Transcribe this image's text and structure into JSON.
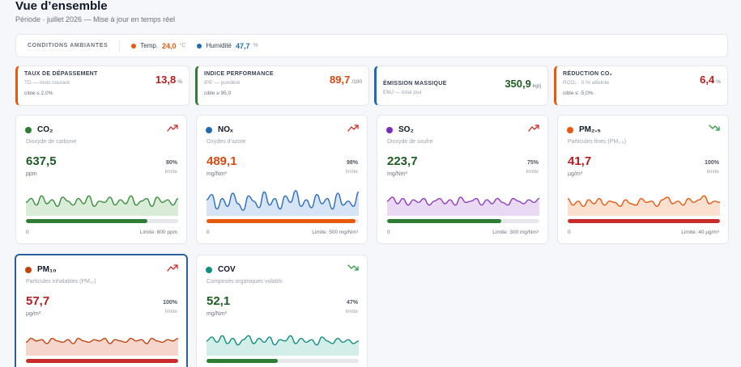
{
  "header": {
    "title": "Vue d’ensemble",
    "subtitle": "Période · juillet 2026 — Mise à jour en temps réel"
  },
  "conditions": {
    "title": "CONDITIONS AMBIANTES",
    "temp": {
      "label": "Temp.",
      "value": "24,0",
      "unit": "°C",
      "color": "#e8590c"
    },
    "humidity": {
      "label": "Humidité",
      "value": "47,7",
      "unit": "%",
      "color": "#1c6bb5"
    }
  },
  "kpis": [
    {
      "title": "TAUX DE DÉPASSEMENT",
      "sub": "TD — mois courant",
      "target": "cible ≤ 2,0%",
      "value": "13,8",
      "unit": "%",
      "color": "#b91c1c",
      "border": "#e8590c"
    },
    {
      "title": "INDICE PERFORMANCE",
      "sub": "IPE — pondéré",
      "target": "cible ≥ 95,0",
      "value": "89,7",
      "unit": "/100",
      "color": "#d9480f",
      "border": "#2f7d32"
    },
    {
      "title": "ÉMISSION MASSIQUE",
      "sub": "EMJ — total jour",
      "target": "",
      "value": "350,9",
      "unit": "kg/j",
      "color": "#1b5e20",
      "border": "#1c6bb5"
    },
    {
      "title": "RÉDUCTION CO₂",
      "sub": "RCO₂ · 0 % atteinte",
      "target": "cible ≤ -5,0%",
      "value": "6,4",
      "unit": "%",
      "color": "#b91c1c",
      "border": "#e8590c"
    }
  ],
  "pollutants": [
    {
      "name": "CO₂",
      "desc": "Dioxyde de carbone",
      "value": "637,5",
      "unit": "ppm",
      "pct": "80%",
      "limit_label": "limite",
      "min": "0",
      "max": "Limite: 800 ppm",
      "fill": 0.8,
      "dot": "#2f7d32",
      "valueColor": "#1b5e20",
      "barColor": "#2f7d32",
      "lineColor": "#3b8f3e",
      "areaColor": "#d8ecd8",
      "trend": "up",
      "trendColor": "#c92a2a",
      "trend_icon": "trend-up-icon",
      "series": [
        0.45,
        0.6,
        0.35,
        0.7,
        0.4,
        0.55,
        0.3,
        0.65,
        0.5,
        0.35,
        0.6,
        0.4,
        0.7,
        0.3,
        0.5,
        0.45,
        0.65,
        0.35,
        0.55,
        0.4,
        0.7,
        0.35,
        0.5,
        0.6,
        0.3,
        0.65,
        0.45,
        0.55,
        0.35,
        0.6
      ]
    },
    {
      "name": "NOₓ",
      "desc": "Oxydes d’azote",
      "value": "489,1",
      "unit": "mg/Nm³",
      "pct": "98%",
      "limit_label": "limite",
      "min": "0",
      "max": "Limite: 500 mg/Nm³",
      "fill": 0.98,
      "dot": "#1c6bb5",
      "valueColor": "#d9480f",
      "barColor": "#e8590c",
      "lineColor": "#2a6fc0",
      "areaColor": "#d6e4f5",
      "trend": "up",
      "trendColor": "#c92a2a",
      "trend_icon": "trend-up-icon",
      "series": [
        0.55,
        0.75,
        0.2,
        0.6,
        0.3,
        0.8,
        0.4,
        0.15,
        0.7,
        0.5,
        0.25,
        0.85,
        0.35,
        0.6,
        0.2,
        0.7,
        0.45,
        0.9,
        0.3,
        0.55,
        0.25,
        0.75,
        0.4,
        0.6,
        0.2,
        0.8,
        0.35,
        0.5,
        0.3,
        0.85
      ]
    },
    {
      "name": "SO₂",
      "desc": "Dioxyde de soufre",
      "value": "223,7",
      "unit": "mg/Nm³",
      "pct": "75%",
      "limit_label": "limite",
      "min": "0",
      "max": "Limite: 300 mg/Nm³",
      "fill": 0.75,
      "dot": "#7b2cbf",
      "valueColor": "#1b5e20",
      "barColor": "#2f7d32",
      "lineColor": "#8e3bc4",
      "areaColor": "#ead9f5",
      "trend": "up",
      "trendColor": "#c92a2a",
      "trend_icon": "trend-up-icon",
      "series": [
        0.5,
        0.65,
        0.4,
        0.6,
        0.35,
        0.55,
        0.45,
        0.6,
        0.35,
        0.5,
        0.6,
        0.4,
        0.55,
        0.35,
        0.65,
        0.45,
        0.5,
        0.6,
        0.35,
        0.55,
        0.4,
        0.6,
        0.45,
        0.35,
        0.6,
        0.5,
        0.4,
        0.55,
        0.45,
        0.6
      ]
    },
    {
      "name": "PM₂.₅",
      "desc": "Particules fines (PM₂.₅)",
      "value": "41,7",
      "unit": "µg/m³",
      "pct": "100%",
      "limit_label": "limite",
      "min": "0",
      "max": "Limite: 40 µg/m³",
      "fill": 1.0,
      "dot": "#e8590c",
      "valueColor": "#b91c1c",
      "barColor": "#c92a2a",
      "lineColor": "#e8590c",
      "areaColor": "#fbe0cf",
      "trend": "down",
      "trendColor": "#2f9e44",
      "trend_icon": "trend-down-icon",
      "series": [
        0.6,
        0.35,
        0.5,
        0.3,
        0.55,
        0.4,
        0.6,
        0.35,
        0.5,
        0.45,
        0.3,
        0.55,
        0.4,
        0.35,
        0.6,
        0.45,
        0.5,
        0.3,
        0.55,
        0.65,
        0.4,
        0.5,
        0.35,
        0.6,
        0.45,
        0.55,
        0.7,
        0.4,
        0.5,
        0.45
      ]
    },
    {
      "name": "PM₁₀",
      "desc": "Particules inhalables (PM₁₀)",
      "value": "57,7",
      "unit": "µg/m³",
      "pct": "100%",
      "limit_label": "limite",
      "min": "0",
      "max": "",
      "fill": 1.0,
      "dot": "#c2410c",
      "valueColor": "#b91c1c",
      "barColor": "#c92a2a",
      "lineColor": "#c2410c",
      "areaColor": "#f6d6cc",
      "trend": "up",
      "trendColor": "#c92a2a",
      "trend_icon": "trend-up-icon",
      "series": [
        0.45,
        0.6,
        0.5,
        0.55,
        0.4,
        0.6,
        0.5,
        0.45,
        0.55,
        0.4,
        0.6,
        0.5,
        0.45,
        0.55,
        0.5,
        0.6,
        0.4,
        0.55,
        0.5,
        0.45,
        0.6,
        0.5,
        0.55,
        0.4,
        0.6,
        0.5,
        0.45,
        0.55,
        0.5,
        0.6
      ]
    },
    {
      "name": "COV",
      "desc": "Composés organiques volatils",
      "value": "52,1",
      "unit": "mg/Nm³",
      "pct": "47%",
      "limit_label": "limite",
      "min": "",
      "max": "",
      "fill": 0.47,
      "dot": "#0f8f7e",
      "valueColor": "#1b5e20",
      "barColor": "#2f7d32",
      "lineColor": "#0f8f7e",
      "areaColor": "#d3eee9",
      "trend": "down",
      "trendColor": "#2f9e44",
      "trend_icon": "trend-down-icon",
      "series": [
        0.5,
        0.65,
        0.45,
        0.7,
        0.4,
        0.6,
        0.35,
        0.55,
        0.7,
        0.4,
        0.6,
        0.45,
        0.65,
        0.35,
        0.55,
        0.5,
        0.7,
        0.4,
        0.6,
        0.45,
        0.55,
        0.35,
        0.65,
        0.5,
        0.4,
        0.6,
        0.45,
        0.55,
        0.4,
        0.5
      ]
    }
  ]
}
